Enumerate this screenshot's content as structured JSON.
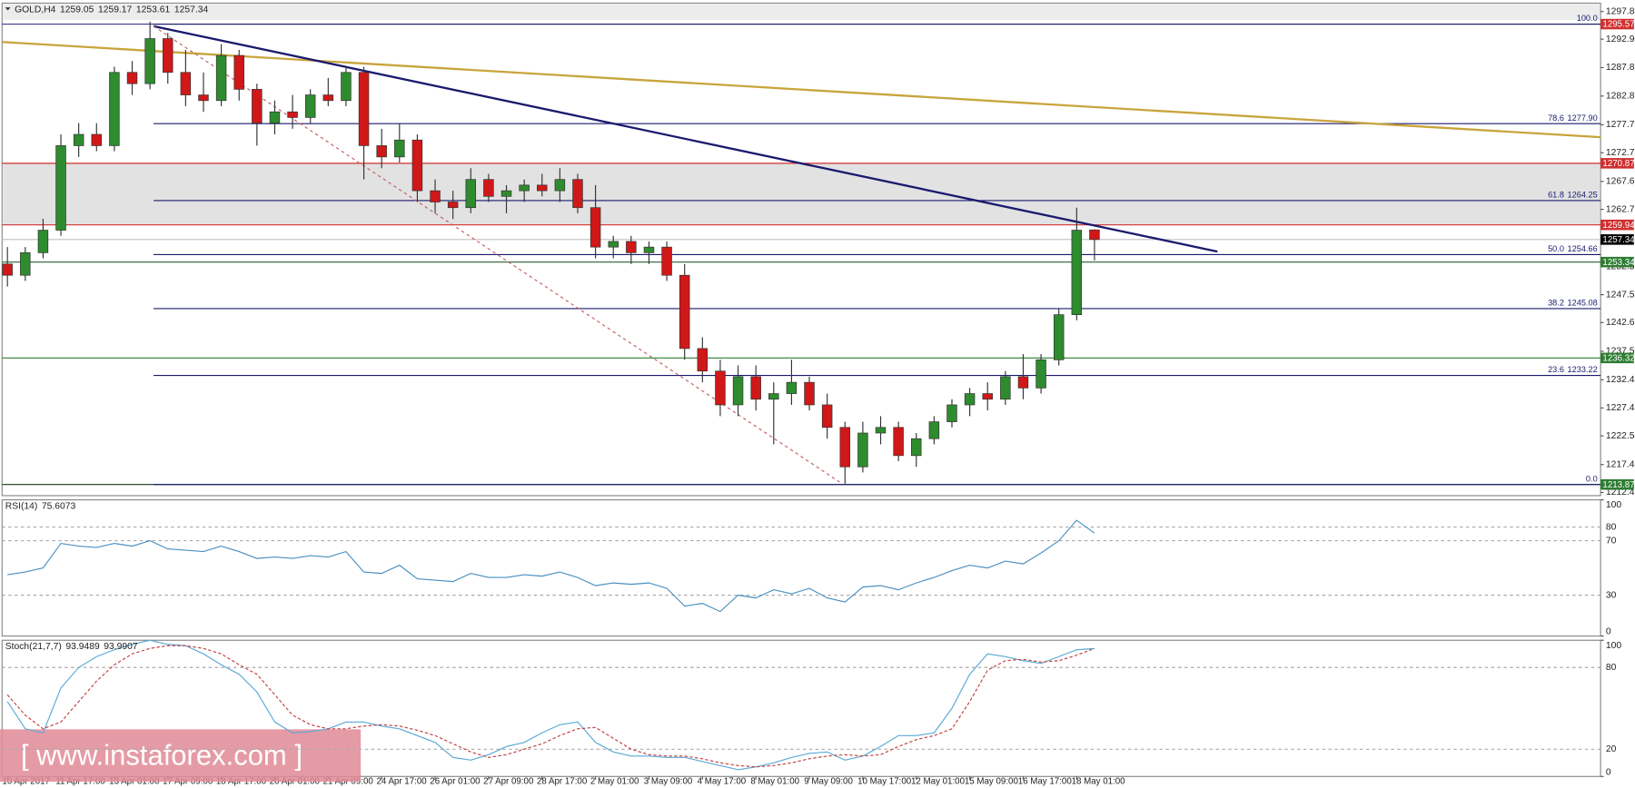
{
  "chart_data": [
    {
      "type": "candlestick",
      "title": "GOLD,H4",
      "categories": [
        "10 Apr 2017",
        null,
        null,
        "11 Apr 17:00",
        null,
        null,
        "13 Apr 01:00",
        null,
        null,
        "17 Apr 09:00",
        null,
        null,
        "18 Apr 17:00",
        null,
        null,
        "20 Apr 01:00",
        null,
        null,
        "21 Apr 09:00",
        null,
        null,
        "24 Apr 17:00",
        null,
        null,
        "26 Apr 01:00",
        null,
        null,
        "27 Apr 09:00",
        null,
        null,
        "28 Apr 17:00",
        null,
        null,
        "2 May 01:00",
        null,
        null,
        "3 May 09:00",
        null,
        null,
        "4 May 17:00",
        null,
        null,
        "8 May 01:00",
        null,
        null,
        "9 May 09:00",
        null,
        null,
        "10 May 17:00",
        null,
        null,
        "12 May 01:00",
        null,
        null,
        "15 May 09:00",
        null,
        null,
        "16 May 17:00",
        null,
        null,
        "18 May 01:00",
        null
      ],
      "open": [
        1253,
        1251,
        1255,
        1259,
        1274,
        1276,
        1274,
        1287,
        1285,
        1293,
        1287,
        1283,
        1282,
        1290,
        1284,
        1278,
        1280,
        1279,
        1283,
        1282,
        1287,
        1274,
        1272,
        1275,
        1266,
        1264,
        1263,
        1268,
        1265,
        1266,
        1267,
        1266,
        1268,
        1263,
        1256,
        1257,
        1255,
        1256,
        1251,
        1238,
        1234,
        1228,
        1233,
        1229,
        1230,
        1232,
        1228,
        1224,
        1217,
        1223,
        1224,
        1219,
        1222,
        1225,
        1228,
        1230,
        1229,
        1233,
        1231,
        1236,
        1244,
        1259.05
      ],
      "high": [
        1256,
        1256,
        1261,
        1276,
        1278,
        1278,
        1288,
        1289,
        1296,
        1294,
        1291,
        1287,
        1292,
        1291,
        1285,
        1282,
        1283,
        1284,
        1286,
        1288,
        1288,
        1277,
        1278,
        1276,
        1268,
        1266,
        1270,
        1269,
        1267,
        1268,
        1269,
        1270,
        1269,
        1267,
        1258,
        1258,
        1257,
        1257,
        1253,
        1240,
        1236,
        1235,
        1235,
        1232,
        1236,
        1233,
        1230,
        1225,
        1225,
        1226,
        1225,
        1223,
        1226,
        1229,
        1231,
        1232,
        1234,
        1237,
        1237,
        1245,
        1263,
        1259.17
      ],
      "low": [
        1249,
        1250,
        1254,
        1258,
        1272,
        1273,
        1273,
        1283,
        1284,
        1285,
        1281,
        1280,
        1281,
        1282,
        1274,
        1276,
        1277,
        1278,
        1281,
        1281,
        1268,
        1270,
        1271,
        1264,
        1262,
        1261,
        1262,
        1264,
        1262,
        1264,
        1265,
        1264,
        1262,
        1254,
        1254,
        1253,
        1253,
        1250,
        1236,
        1232,
        1226,
        1226,
        1227,
        1221,
        1228,
        1227,
        1222,
        1214,
        1216,
        1221,
        1218,
        1217,
        1221,
        1224,
        1226,
        1227,
        1228,
        1229,
        1230,
        1235,
        1243,
        1253.61
      ],
      "close": [
        1251,
        1255,
        1259,
        1274,
        1276,
        1274,
        1287,
        1285,
        1293,
        1287,
        1283,
        1282,
        1290,
        1284,
        1278,
        1280,
        1279,
        1283,
        1282,
        1287,
        1274,
        1272,
        1275,
        1266,
        1264,
        1263,
        1268,
        1265,
        1266,
        1267,
        1266,
        1268,
        1263,
        1256,
        1257,
        1255,
        1256,
        1251,
        1238,
        1234,
        1228,
        1233,
        1229,
        1230,
        1232,
        1228,
        1224,
        1217,
        1223,
        1224,
        1219,
        1222,
        1225,
        1228,
        1230,
        1229,
        1233,
        1231,
        1236,
        1244,
        1259,
        1257.34
      ],
      "up_color": "#2e8b2e",
      "down_color": "#d01818",
      "wick_color": "#333333",
      "xlim": [
        -0.3,
        89.4
      ],
      "ylim": [
        1211.89,
        1299.29
      ],
      "yticks": [
        {
          "value": 1297.8,
          "label": "1297.80"
        },
        {
          "value": 1292.9,
          "label": "1292.90"
        },
        1287.85,
        {
          "value": 1282.8,
          "label": "1282.80"
        },
        {
          "value": 1277.7,
          "label": "1277.70"
        },
        1272.75,
        1267.65,
        {
          "value": 1262.7,
          "label": "1262.70"
        },
        1252.55,
        1247.55,
        {
          "value": 1242.6,
          "label": "1242.60"
        },
        {
          "value": 1237.5,
          "label": "1237.50"
        },
        1232.45,
        1227.45,
        {
          "value": 1222.5,
          "label": "1222.50"
        },
        {
          "value": 1217.4,
          "label": "1217.40"
        },
        1212.45
      ],
      "zone": [
        1259.94,
        1270.87
      ],
      "zone_color": "#e2e2e2",
      "levels": [
        {
          "value": 1295.57,
          "color": "#d03030",
          "line_color": "#3a3a8c"
        },
        {
          "value": 1270.87,
          "color": "#d03030",
          "line_color": "#d03030"
        },
        {
          "value": 1259.94,
          "color": "#d03030",
          "line_color": "#d03030"
        },
        {
          "value": 1257.34,
          "color": "#000000",
          "line_color": "#c0c0c0"
        },
        {
          "value": 1253.34,
          "color": "#2e7d32",
          "line_color": "#2e5e32"
        },
        {
          "value": 1236.32,
          "color": "#2e7d32",
          "line_color": "#2e7d32"
        },
        {
          "value": 1213.87,
          "color": "#2e7d32",
          "line_color": "#1a3a1a"
        }
      ],
      "fib": {
        "start": 8.2,
        "color": "#1a1a6e",
        "levels": [
          {
            "ratio": "100.0",
            "price": 1295.57
          },
          {
            "ratio": "78.6",
            "price": {
              "value": 1277.9,
              "label": "1277.90"
            }
          },
          {
            "ratio": "61.8",
            "price": 1264.25
          },
          {
            "ratio": "50.0",
            "price": 1254.66
          },
          {
            "ratio": "38.2",
            "price": 1245.08
          },
          {
            "ratio": "23.6",
            "price": 1233.22
          },
          {
            "ratio": "0.0",
            "price": 1213.87
          }
        ]
      },
      "trendlines": [
        {
          "color": "#c8a43c",
          "points": [
            [
              -0.3,
              1292.4
            ],
            [
              89.4,
              1275.5
            ]
          ]
        },
        {
          "color": "#1a1a6e",
          "points": [
            [
              8.2,
              1295.2
            ],
            [
              67.9,
              1255.2
            ]
          ]
        },
        {
          "color": "#c06060",
          "dashed": true,
          "points": [
            [
              8.2,
              1295.2
            ],
            [
              46.7,
              1214.3
            ]
          ]
        }
      ],
      "watermark": "[ www.instaforex.com ]"
    },
    {
      "type": "line",
      "title": "RSI(14)",
      "ylim": [
        0,
        100
      ],
      "yticks": [
        100,
        80,
        70,
        30,
        0
      ],
      "series": [
        {
          "color": "#4a90c0",
          "values": [
            45,
            47,
            50,
            68,
            66,
            65,
            68,
            66,
            70,
            64,
            63,
            62,
            66,
            62,
            57,
            58,
            57,
            59,
            58,
            62,
            47,
            46,
            52,
            42,
            41,
            40,
            46,
            43,
            43,
            45,
            44,
            47,
            43,
            37,
            39,
            38,
            39,
            35,
            22,
            24,
            18,
            30,
            28,
            34,
            31,
            35,
            28,
            25,
            36,
            37,
            34,
            39,
            43,
            48,
            52,
            50,
            55,
            53,
            61,
            70,
            85,
            75.6073
          ]
        }
      ]
    },
    {
      "type": "line",
      "title": "Stoch(21,7,7)",
      "ylim": [
        0,
        100
      ],
      "yticks": [
        100,
        80,
        20,
        0
      ],
      "series": [
        {
          "color": "#5aa9d6",
          "values": [
            55,
            35,
            32,
            65,
            80,
            88,
            93,
            97,
            100,
            97,
            96,
            90,
            82,
            75,
            62,
            40,
            32,
            33,
            35,
            40,
            40,
            37,
            35,
            30,
            25,
            14,
            12,
            16,
            22,
            25,
            32,
            38,
            40,
            25,
            18,
            15,
            15,
            14,
            14,
            11,
            8,
            5,
            7,
            10,
            14,
            17,
            18,
            12,
            15,
            22,
            30,
            30,
            32,
            50,
            75,
            90,
            88,
            85,
            83,
            88,
            93,
            93.9489
          ]
        },
        {
          "color": "#c04040",
          "dashed": true,
          "values": [
            60,
            45,
            35,
            40,
            55,
            70,
            82,
            90,
            94,
            96,
            96,
            94,
            90,
            82,
            75,
            60,
            45,
            38,
            35,
            35,
            37,
            38,
            37,
            34,
            30,
            24,
            18,
            14,
            16,
            20,
            24,
            30,
            35,
            36,
            28,
            20,
            16,
            15,
            15,
            13,
            10,
            8,
            7,
            8,
            10,
            13,
            15,
            16,
            15,
            16,
            22,
            27,
            30,
            35,
            55,
            78,
            85,
            86,
            84,
            85,
            89,
            93.9907
          ]
        }
      ]
    }
  ]
}
